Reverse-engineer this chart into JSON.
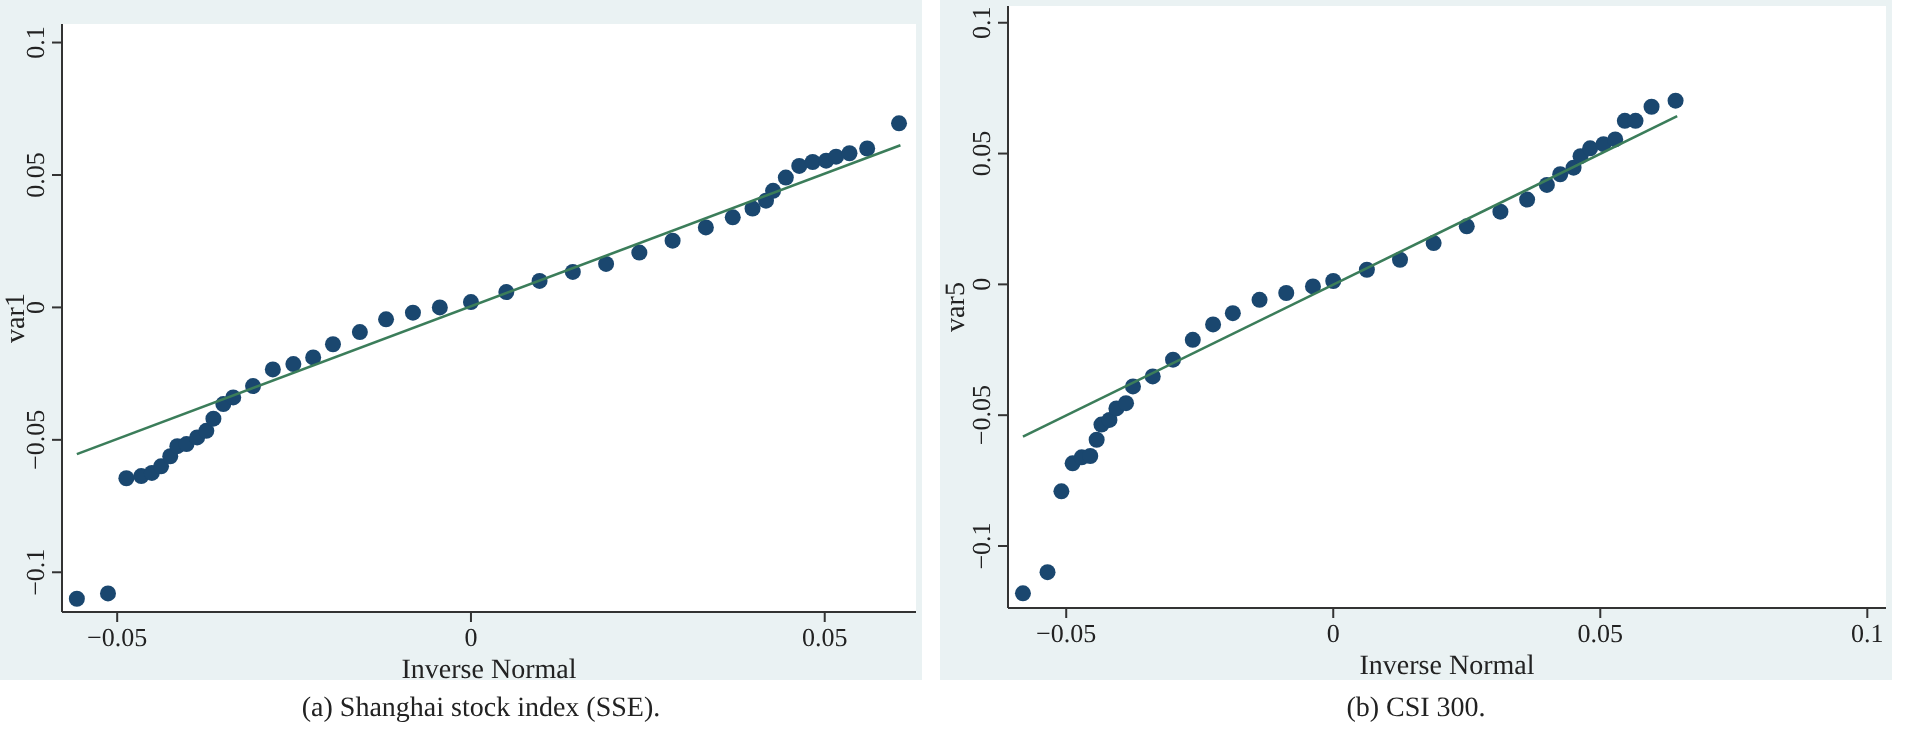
{
  "chart_data": [
    {
      "type": "scatter",
      "title": "(a) Shanghai stock index (SSE).",
      "xlabel": "Inverse Normal",
      "ylabel": "var1",
      "xlim": [
        -0.0578,
        0.0629
      ],
      "ylim": [
        -0.115,
        0.107
      ],
      "xticks": [
        -0.05,
        0,
        0.05
      ],
      "yticks": [
        -0.1,
        -0.05,
        0,
        0.05,
        0.1
      ],
      "grid": false,
      "series": [
        {
          "color": "#1a476f",
          "marker": "circle",
          "x": [
            -0.0557,
            -0.0513,
            -0.0487,
            -0.0466,
            -0.0451,
            -0.0438,
            -0.0425,
            -0.0415,
            -0.0402,
            -0.0387,
            -0.0374,
            -0.0364,
            -0.035,
            -0.0336,
            -0.0308,
            -0.028,
            -0.0251,
            -0.0223,
            -0.0195,
            -0.0157,
            -0.012,
            -0.0082,
            -0.0044,
            0,
            0.005,
            0.0097,
            0.0144,
            0.0191,
            0.0238,
            0.0285,
            0.0332,
            0.037,
            0.0398,
            0.0417,
            0.0427,
            0.0445,
            0.0464,
            0.0483,
            0.0502,
            0.0516,
            0.0535,
            0.056,
            0.0605
          ],
          "values": [
            -0.11,
            -0.108,
            -0.0645,
            -0.0637,
            -0.0625,
            -0.06,
            -0.0562,
            -0.0524,
            -0.0516,
            -0.0491,
            -0.0466,
            -0.042,
            -0.0365,
            -0.034,
            -0.0297,
            -0.0234,
            -0.0214,
            -0.0189,
            -0.0139,
            -0.0093,
            -0.0045,
            -0.002,
            0,
            0.002,
            0.0058,
            0.01,
            0.0134,
            0.0164,
            0.0207,
            0.0252,
            0.0302,
            0.034,
            0.0373,
            0.0403,
            0.044,
            0.049,
            0.0534,
            0.0549,
            0.0554,
            0.0569,
            0.0582,
            0.06,
            0.0695
          ]
        },
        {
          "type": "line",
          "color": "#3b7d5a",
          "line_style": "solid",
          "marker": "none",
          "x": [
            -0.0557,
            0.0607
          ],
          "values": [
            -0.0554,
            0.0612
          ]
        }
      ]
    },
    {
      "type": "scatter",
      "title": "(b) CSI 300.",
      "xlabel": "Inverse Normal",
      "ylabel": "var5",
      "xlim": [
        -0.0609,
        0.1035
      ],
      "ylim": [
        -0.1237,
        0.1064
      ],
      "xticks": [
        -0.05,
        0,
        0.05,
        0.1
      ],
      "yticks": [
        -0.1,
        -0.05,
        0,
        0.05,
        0.1
      ],
      "grid": false,
      "series": [
        {
          "color": "#1a476f",
          "marker": "circle",
          "x": [
            -0.0581,
            -0.0535,
            -0.0509,
            -0.0488,
            -0.0471,
            -0.0455,
            -0.0443,
            -0.0434,
            -0.0419,
            -0.0406,
            -0.0388,
            -0.0375,
            -0.0338,
            -0.03,
            -0.0263,
            -0.0225,
            -0.0188,
            -0.0138,
            -0.0088,
            -0.0038,
            0,
            0.0063,
            0.0125,
            0.0188,
            0.025,
            0.0313,
            0.0363,
            0.04,
            0.0425,
            0.045,
            0.0463,
            0.0481,
            0.0506,
            0.0528,
            0.0546,
            0.0566,
            0.0596,
            0.0641
          ],
          "values": [
            -0.1181,
            -0.11,
            -0.0791,
            -0.0684,
            -0.0661,
            -0.0656,
            -0.0594,
            -0.0536,
            -0.0518,
            -0.0474,
            -0.0454,
            -0.039,
            -0.0352,
            -0.0288,
            -0.0212,
            -0.0153,
            -0.011,
            -0.0059,
            -0.0033,
            -0.0008,
            0.0013,
            0.0056,
            0.0094,
            0.0158,
            0.0222,
            0.0278,
            0.0324,
            0.038,
            0.0421,
            0.0446,
            0.049,
            0.052,
            0.0536,
            0.0554,
            0.0625,
            0.0625,
            0.0679,
            0.0702
          ]
        },
        {
          "type": "line",
          "color": "#3b7d5a",
          "line_style": "solid",
          "marker": "none",
          "x": [
            -0.0581,
            0.0644
          ],
          "values": [
            -0.0582,
            0.0643
          ]
        }
      ]
    }
  ]
}
